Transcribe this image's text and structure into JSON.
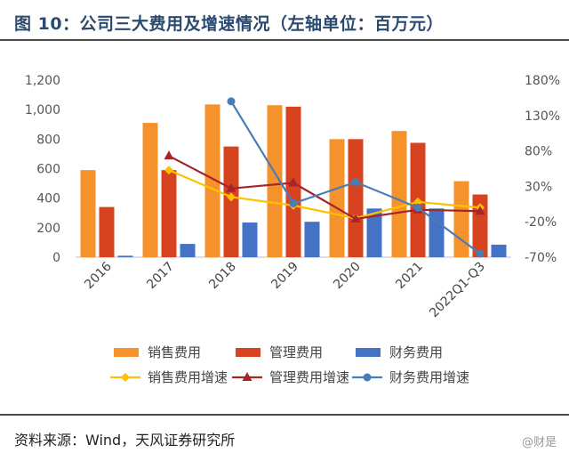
{
  "title": "图 10：公司三大费用及增速情况（左轴单位：百万元）",
  "source": "资料来源：Wind，天风证券研究所",
  "watermark": "@财是",
  "colors": {
    "sales": "#F5922B",
    "admin": "#D8431F",
    "finance": "#4472C4",
    "sales_growth": "#FFC000",
    "admin_growth": "#A5252B",
    "finance_growth": "#4A7CB8"
  },
  "chart_data": {
    "type": "bar",
    "categories": [
      "2016",
      "2017",
      "2018",
      "2019",
      "2020",
      "2021",
      "2022Q1-Q3"
    ],
    "left_axis": {
      "ticks": [
        "0",
        "200",
        "400",
        "600",
        "800",
        "1,000",
        "1,200"
      ],
      "ylim": [
        0,
        1200
      ]
    },
    "right_axis": {
      "ticks": [
        "-70%",
        "-20%",
        "30%",
        "80%",
        "130%",
        "180%"
      ],
      "ylim": [
        -70,
        180
      ]
    },
    "series": [
      {
        "name": "销售费用",
        "axis": "left",
        "kind": "bar",
        "color": "#F5922B",
        "values": [
          590,
          910,
          1035,
          1030,
          800,
          855,
          515
        ]
      },
      {
        "name": "管理费用",
        "axis": "left",
        "kind": "bar",
        "color": "#D8431F",
        "values": [
          340,
          590,
          750,
          1020,
          800,
          775,
          425
        ]
      },
      {
        "name": "财务费用",
        "axis": "left",
        "kind": "bar",
        "color": "#4472C4",
        "values": [
          10,
          90,
          235,
          240,
          330,
          330,
          85
        ]
      },
      {
        "name": "销售费用增速",
        "axis": "right",
        "kind": "line",
        "color": "#FFC000",
        "marker": "diamond",
        "values": [
          null,
          53,
          15,
          3,
          -15,
          8,
          0
        ]
      },
      {
        "name": "管理费用增速",
        "axis": "right",
        "kind": "line",
        "color": "#A5252B",
        "marker": "triangle",
        "values": [
          null,
          73,
          27,
          35,
          -16,
          -3,
          -5
        ]
      },
      {
        "name": "财务费用增速",
        "axis": "right",
        "kind": "line",
        "color": "#4A7CB8",
        "marker": "circle",
        "values": [
          null,
          null,
          150,
          6,
          36,
          0,
          -65
        ]
      }
    ],
    "legend_placement": "bottom"
  }
}
